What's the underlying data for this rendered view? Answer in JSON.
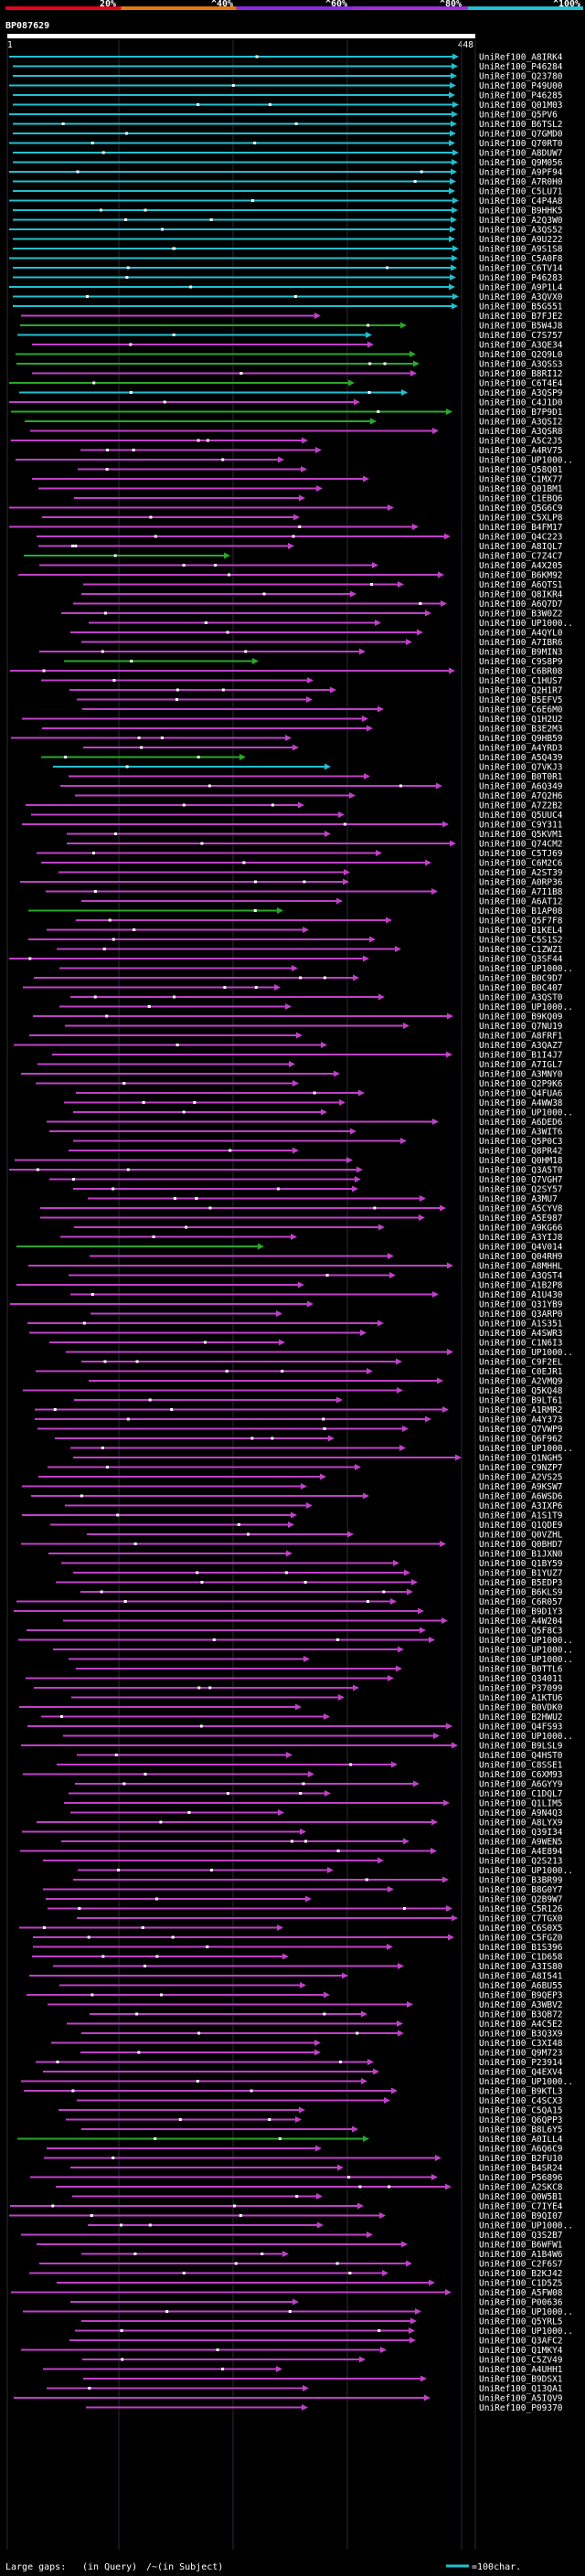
{
  "chart_data": {
    "type": "alignment-overview",
    "query": {
      "name": "BP087629",
      "start": 1,
      "end": 448
    },
    "scale_labels": [
      "20%",
      "^40%",
      "^60%",
      "^80%",
      "^100%"
    ],
    "scale_colors": [
      "#e8001c",
      "#e07a10",
      "#8a2be2",
      "#9b30d9",
      "#22c0d0"
    ],
    "legend": {
      "large_gaps": "Large gaps:",
      "in_query": "(in Query)",
      "in_subject": "/~(in Subject)",
      "scale_note": "=100char."
    },
    "identity_colors": {
      "high": "#20c0d0",
      "mid": "#28a828",
      "low": "#c040c8"
    },
    "hits": [
      "UniRef100_A8IRK4",
      "UniRef100_P46284",
      "UniRef100_Q23780",
      "UniRef100_P49U00",
      "UniRef100_P46285",
      "UniRef100_Q01M03",
      "UniRef100_Q5PV6",
      "UniRef100_B6TSL2",
      "UniRef100_Q7GMD0",
      "UniRef100_Q70RT0",
      "UniRef100_A8DUW7",
      "UniRef100_Q9M056",
      "UniRef100_A9PF94",
      "UniRef100_A7R0H0",
      "UniRef100_C5LU71",
      "UniRef100_C4P4A8",
      "UniRef100_B9HHK5",
      "UniRef100_A2Q3W0",
      "UniRef100_A3QS52",
      "UniRef100_A9U222",
      "UniRef100_A9S1S8",
      "UniRef100_C5A0F8",
      "UniRef100_C6TV14",
      "UniRef100_P46283",
      "UniRef100_A9P1L4",
      "UniRef100_A3QVX0",
      "UniRef100_B5G551",
      "UniRef100_B7FJE2",
      "UniRef100_B5W4J8",
      "UniRef100_C7S757",
      "UniRef100_A3QE34",
      "UniRef100_Q2Q9L0",
      "UniRef100_A3QSS3",
      "UniRef100_B8RI12",
      "UniRef100_C6T4E4",
      "UniRef100_A3QSP9",
      "UniRef100_C4J1D0",
      "UniRef100_B7P9D1",
      "UniRef100_A3QSI2",
      "UniRef100_A3QSR8",
      "UniRef100_A5C2J5",
      "UniRef100_A4RV75",
      "UniRef100_UP1000..",
      "UniRef100_Q58Q01",
      "UniRef100_C1MX77",
      "UniRef100_Q01BM1",
      "UniRef100_C1EBQ6",
      "UniRef100_Q5G6C9",
      "UniRef100_C5XLP8",
      "UniRef100_B4FM17",
      "UniRef100_Q4C223",
      "UniRef100_A8IQL7",
      "UniRef100_C7Z4C7",
      "UniRef100_A4X205",
      "UniRef100_B6KM92",
      "UniRef100_A6QTS1",
      "UniRef100_Q8IKR4",
      "UniRef100_A6Q7D7",
      "UniRef100_B3W0Z2",
      "UniRef100_UP1000..",
      "UniRef100_A4QYL0",
      "UniRef100_A7IBR6",
      "UniRef100_B9MIN3",
      "UniRef100_C9S8P9",
      "UniRef100_C6BR08",
      "UniRef100_C1HUS7",
      "UniRef100_Q2H1R7",
      "UniRef100_B5EFV5",
      "UniRef100_C6E6M0",
      "UniRef100_Q1H2U2",
      "UniRef100_B3E2M3",
      "UniRef100_Q9HB59",
      "UniRef100_A4YRD3",
      "UniRef100_A5Q439",
      "UniRef100_Q7VKJ3",
      "UniRef100_B0T0R1",
      "UniRef100_A6Q349",
      "UniRef100_A7Q2H6",
      "UniRef100_A7Z2B2",
      "UniRef100_Q5UUC4",
      "UniRef100_C9Y311",
      "UniRef100_Q5KVM1",
      "UniRef100_Q74CM2",
      "UniRef100_C5TJ69",
      "UniRef100_C6M2C6",
      "UniRef100_A2ST39",
      "UniRef100_A0RP36",
      "UniRef100_A7I1B8",
      "UniRef100_A6AT12",
      "UniRef100_B1AP08",
      "UniRef100_Q5F7F8",
      "UniRef100_B1KEL4",
      "UniRef100_C5S1S2",
      "UniRef100_C1ZWZ1",
      "UniRef100_Q3SF44",
      "UniRef100_UP1000..",
      "UniRef100_B0C9D7",
      "UniRef100_B0C407",
      "UniRef100_A3QST0",
      "UniRef100_UP1000..",
      "UniRef100_B9KQ09",
      "UniRef100_Q7NU19",
      "UniRef100_A8FRF1",
      "UniRef100_A3QAZ7",
      "UniRef100_B1I4J7",
      "UniRef100_A7IGL7",
      "UniRef100_A3MNY0",
      "UniRef100_Q2P9K6",
      "UniRef100_Q4FUA6",
      "UniRef100_A4WW38",
      "UniRef100_UP1000..",
      "UniRef100_A6DED6",
      "UniRef100_A3WIT6",
      "UniRef100_Q5P0C3",
      "UniRef100_Q8PR42",
      "UniRef100_Q0HM18",
      "UniRef100_Q3A5T0",
      "UniRef100_Q7VGH7",
      "UniRef100_Q2SY57",
      "UniRef100_A3MU7",
      "UniRef100_A5CYV8",
      "UniRef100_A5E987",
      "UniRef100_A9KG66",
      "UniRef100_A3YIJ8",
      "UniRef100_Q4V014",
      "UniRef100_Q04RH9",
      "UniRef100_A8MHHL",
      "UniRef100_A3QST4",
      "UniRef100_A1B2P8",
      "UniRef100_A1U430",
      "UniRef100_Q31YB9",
      "UniRef100_Q3ARP0",
      "UniRef100_A1S351",
      "UniRef100_A4SWR3",
      "UniRef100_C1N6I3",
      "UniRef100_UP1000..",
      "UniRef100_C9F2EL",
      "UniRef100_C0EJR1",
      "UniRef100_A2VMQ9",
      "UniRef100_Q5KQ48",
      "UniRef100_B9LT61",
      "UniRef100_A1RMR2",
      "UniRef100_A4Y373",
      "UniRef100_Q7VWP9",
      "UniRef100_Q6F962",
      "UniRef100_UP1000..",
      "UniRef100_Q1NGH5",
      "UniRef100_C9NZP7",
      "UniRef100_A2VS25",
      "UniRef100_A9KSW7",
      "UniRef100_A6WSD6",
      "UniRef100_A3IXP6",
      "UniRef100_A1S1T9",
      "UniRef100_Q1QDE9",
      "UniRef100_Q0VZHL",
      "UniRef100_Q0BHD7",
      "UniRef100_B1JXN0",
      "UniRef100_Q1BY59",
      "UniRef100_B1YUZ7",
      "UniRef100_B5EDP3",
      "UniRef100_B6KLS9",
      "UniRef100_C6R057",
      "UniRef100_B9D1Y3",
      "UniRef100_A4W204",
      "UniRef100_Q5F8C3",
      "UniRef100_UP1000..",
      "UniRef100_UP1000..",
      "UniRef100_UP1000..",
      "UniRef100_B0TTL6",
      "UniRef100_Q34011",
      "UniRef100_P37099",
      "UniRef100_A1KTU6",
      "UniRef100_B0VDK0",
      "UniRef100_B2HWU2",
      "UniRef100_Q4FS93",
      "UniRef100_UP1000..",
      "UniRef100_B9LSL9",
      "UniRef100_Q4HST0",
      "UniRef100_C8SSE1",
      "UniRef100_C6XM93",
      "UniRef100_A6GYY9",
      "UniRef100_C1DQL7",
      "UniRef100_Q1LIM5",
      "UniRef100_A9N4Q3",
      "UniRef100_A8LYX9",
      "UniRef100_Q39I34",
      "UniRef100_A9WEN5",
      "UniRef100_A4E894",
      "UniRef100_Q2S213",
      "UniRef100_UP1000..",
      "UniRef100_B3BR99",
      "UniRef100_B8G0Y7",
      "UniRef100_Q2B9W7",
      "UniRef100_C5R126",
      "UniRef100_C7TGX0",
      "UniRef100_C6S0X5",
      "UniRef100_C5FGZ0",
      "UniRef100_B1S396",
      "UniRef100_C1D658",
      "UniRef100_A3IS80",
      "UniRef100_A8I541",
      "UniRef100_A6BU55",
      "UniRef100_B9QEP3",
      "UniRef100_A3WBV2",
      "UniRef100_B3QB72",
      "UniRef100_A4C5E2",
      "UniRef100_B3Q3X9",
      "UniRef100_C3XI48",
      "UniRef100_Q9M723",
      "UniRef100_P23914",
      "UniRef100_Q4EXV4",
      "UniRef100_UP1000..",
      "UniRef100_B9KTL3",
      "UniRef100_C4SCX3",
      "UniRef100_C5QA15",
      "UniRef100_Q6QPP3",
      "UniRef100_B8L6Y5",
      "UniRef100_A0ILL4",
      "UniRef100_A6Q6C9",
      "UniRef100_B2FU10",
      "UniRef100_B4SR24",
      "UniRef100_P56896",
      "UniRef100_A2SKC8",
      "UniRef100_Q0W5B1",
      "UniRef100_C7IYE4",
      "UniRef100_B9QI07",
      "UniRef100_UP1000..",
      "UniRef100_Q3S2B7",
      "UniRef100_B6WFW1",
      "UniRef100_A1B4W6",
      "UniRef100_C2F6S7",
      "UniRef100_B2KJ42",
      "UniRef100_C1D5Z5",
      "UniRef100_A5FW08",
      "UniRef100_P00636",
      "UniRef100_UP1000..",
      "UniRef100_Q5YRL5",
      "UniRef100_UP1000..",
      "UniRef100_Q3AFC2",
      "UniRef100_Q1MKY4",
      "UniRef100_C5ZV49",
      "UniRef100_A4UHH1",
      "UniRef100_B9DSX1",
      "UniRef100_Q13QA1",
      "UniRef100_A5IQV9",
      "UniRef100_P09370"
    ]
  }
}
